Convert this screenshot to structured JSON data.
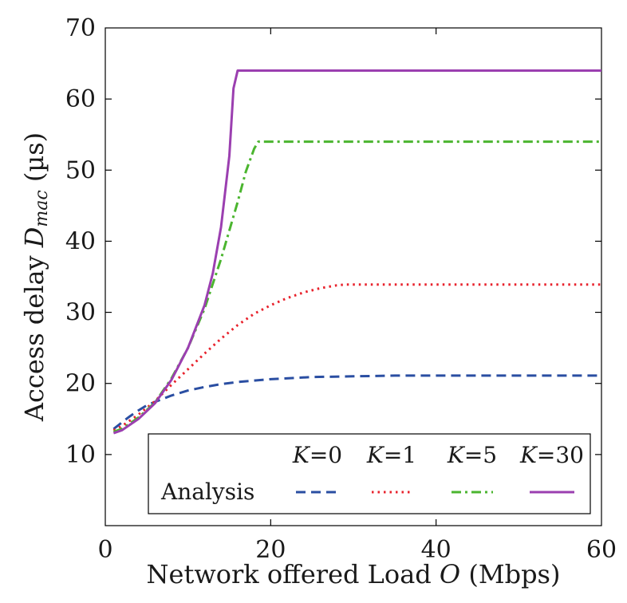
{
  "chart_data": {
    "type": "line",
    "title": "",
    "xlabel": {
      "main": "Network offered Load ",
      "var": "O",
      "unit": " (Mbps)"
    },
    "ylabel": {
      "main": "Access delay ",
      "var": "D",
      "sub": "mac",
      "unit": " (µs)"
    },
    "xlim": [
      0,
      60
    ],
    "ylim": [
      0,
      70
    ],
    "xticks": [
      0,
      20,
      40,
      60
    ],
    "yticks": [
      10,
      20,
      30,
      40,
      50,
      60,
      70
    ],
    "grid": false,
    "legend": {
      "position": "bottom",
      "row_label": "Analysis",
      "var_name": "K",
      "entries": [
        "=0",
        "=1",
        "=5",
        "=30"
      ]
    },
    "series": [
      {
        "name": "K=0",
        "color": "#2a4ea2",
        "style": "dashed",
        "x": [
          1,
          2,
          3,
          4,
          5,
          6,
          8,
          10,
          12,
          14,
          16,
          18,
          20,
          25,
          30,
          35,
          40,
          45,
          50,
          55,
          60
        ],
        "y": [
          13.6,
          14.5,
          15.4,
          16.2,
          16.9,
          17.4,
          18.3,
          19.0,
          19.5,
          19.9,
          20.2,
          20.4,
          20.6,
          20.9,
          21.0,
          21.1,
          21.1,
          21.1,
          21.1,
          21.1,
          21.1
        ]
      },
      {
        "name": "K=1",
        "color": "#e8222c",
        "style": "dotted",
        "x": [
          1,
          2,
          4,
          6,
          8,
          10,
          12,
          14,
          16,
          18,
          20,
          22,
          24,
          26,
          28,
          29,
          30,
          35,
          40,
          45,
          50,
          55,
          60
        ],
        "y": [
          13.4,
          14.0,
          15.6,
          17.5,
          19.8,
          22.0,
          24.2,
          26.3,
          28.2,
          29.8,
          31.0,
          32.0,
          32.8,
          33.4,
          33.8,
          33.9,
          33.9,
          33.9,
          33.9,
          33.9,
          33.9,
          33.9,
          33.9
        ]
      },
      {
        "name": "K=5",
        "color": "#4bb52f",
        "style": "dashdot",
        "x": [
          1,
          2,
          4,
          6,
          8,
          10,
          12,
          14,
          16,
          17,
          18,
          18.5,
          20,
          30,
          40,
          50,
          60
        ],
        "y": [
          13.2,
          13.6,
          15.2,
          17.3,
          20.7,
          25.0,
          30.5,
          37.5,
          45.5,
          49.8,
          53.0,
          54.0,
          54.0,
          54.0,
          54.0,
          54.0,
          54.0
        ]
      },
      {
        "name": "K=30",
        "color": "#9b3fb0",
        "style": "solid",
        "x": [
          1,
          2,
          4,
          6,
          8,
          10,
          12,
          13,
          14,
          15,
          15.5,
          16,
          20,
          30,
          40,
          50,
          60
        ],
        "y": [
          13.0,
          13.4,
          15.0,
          17.2,
          20.5,
          25.0,
          31.0,
          35.5,
          42.0,
          52.0,
          61.5,
          64.0,
          64.0,
          64.0,
          64.0,
          64.0,
          64.0
        ]
      }
    ]
  }
}
